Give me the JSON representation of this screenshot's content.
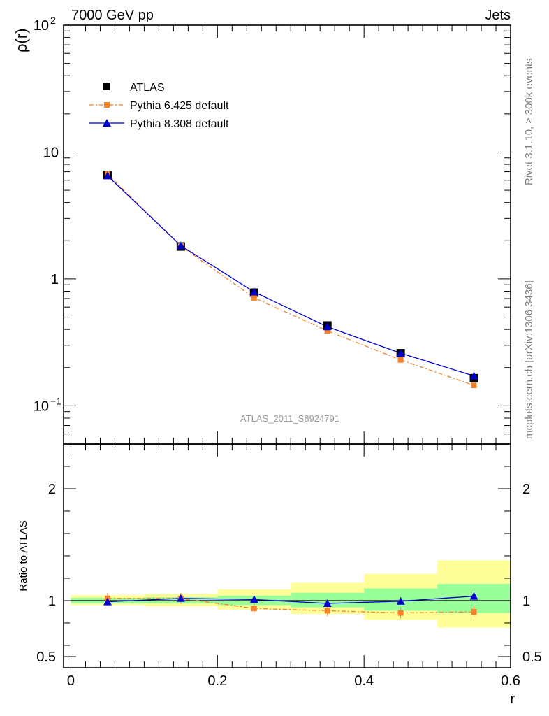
{
  "header": {
    "left": "7000 GeV pp",
    "right": "Jets"
  },
  "side_labels": {
    "rivet": "Rivet 3.1.10, ≥ 300k events",
    "mcplots": "mcplots.cern.ch [arXiv:1306.3436]"
  },
  "analysis_id": "ATLAS_2011_S8924791",
  "colors": {
    "data": "#000000",
    "pythia6": "#f5822a",
    "pythia8": "#0000cc",
    "band_inner": "#99ff99",
    "band_outer": "#ffff99"
  },
  "chart_data": [
    {
      "type": "line",
      "panel": "main",
      "ylabel_base": "ρ(r)",
      "yscale": "log",
      "ylim": [
        0.05,
        100
      ],
      "xlim": [
        -0.01,
        0.6
      ],
      "yticks": [
        {
          "value": 0.1,
          "base": "10",
          "exp": "−1"
        },
        {
          "value": 1,
          "base": "1",
          "exp": ""
        },
        {
          "value": 10,
          "base": "10",
          "exp": ""
        },
        {
          "value": 100,
          "base": "10",
          "exp": "2"
        }
      ],
      "legend": {
        "position": "top-left"
      },
      "x": [
        0.05,
        0.15,
        0.25,
        0.35,
        0.45,
        0.55
      ],
      "series": [
        {
          "name": "ATLAS",
          "values": [
            6.6,
            1.8,
            0.78,
            0.43,
            0.26,
            0.165
          ],
          "marker": "square",
          "color": "#000000"
        },
        {
          "name": "Pythia 6.425 default",
          "values": [
            6.7,
            1.82,
            0.71,
            0.39,
            0.23,
            0.145
          ],
          "marker": "square-small",
          "color": "#f5822a",
          "dash": "dashdot"
        },
        {
          "name": "Pythia 8.308 default",
          "values": [
            6.5,
            1.83,
            0.79,
            0.42,
            0.26,
            0.172
          ],
          "marker": "triangle",
          "color": "#0000cc"
        }
      ]
    },
    {
      "type": "line",
      "panel": "ratio",
      "ylabel": "Ratio to ATLAS",
      "xlabel": "r",
      "ylim": [
        0.4,
        2.4
      ],
      "xlim": [
        -0.01,
        0.6
      ],
      "yticks": [
        {
          "value": 0.5,
          "label": "0.5"
        },
        {
          "value": 1,
          "label": "1"
        },
        {
          "value": 2,
          "label": "2"
        }
      ],
      "xticks": [
        {
          "value": 0,
          "label": "0"
        },
        {
          "value": 0.2,
          "label": "0.2"
        },
        {
          "value": 0.4,
          "label": "0.4"
        },
        {
          "value": 0.6,
          "label": "0.6"
        }
      ],
      "bins": [
        [
          0,
          0.1
        ],
        [
          0.1,
          0.2
        ],
        [
          0.2,
          0.3
        ],
        [
          0.3,
          0.4
        ],
        [
          0.4,
          0.5
        ],
        [
          0.5,
          0.6
        ]
      ],
      "band_inner": [
        [
          0.975,
          1.025
        ],
        [
          0.975,
          1.03
        ],
        [
          0.96,
          1.045
        ],
        [
          0.94,
          1.07
        ],
        [
          0.91,
          1.11
        ],
        [
          0.89,
          1.15
        ]
      ],
      "band_outer": [
        [
          0.96,
          1.05
        ],
        [
          0.95,
          1.06
        ],
        [
          0.92,
          1.1
        ],
        [
          0.88,
          1.16
        ],
        [
          0.83,
          1.24
        ],
        [
          0.76,
          1.36
        ]
      ],
      "x": [
        0.05,
        0.15,
        0.25,
        0.35,
        0.45,
        0.55
      ],
      "series": [
        {
          "name": "Pythia 6.425 default",
          "values": [
            1.02,
            1.02,
            0.93,
            0.91,
            0.89,
            0.9
          ],
          "color": "#f5822a",
          "dash": "dashdot"
        },
        {
          "name": "Pythia 8.308 default",
          "values": [
            0.99,
            1.02,
            1.01,
            0.975,
            0.995,
            1.04
          ],
          "color": "#0000cc"
        }
      ]
    }
  ]
}
